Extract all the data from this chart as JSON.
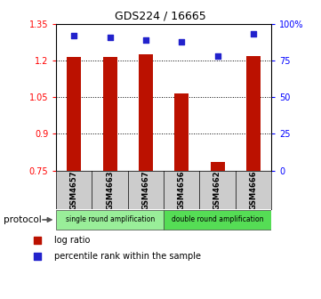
{
  "title": "GDS224 / 16665",
  "samples": [
    "GSM4657",
    "GSM4663",
    "GSM4667",
    "GSM4656",
    "GSM4662",
    "GSM4666"
  ],
  "log_ratio": [
    1.215,
    1.215,
    1.225,
    1.065,
    0.785,
    1.22
  ],
  "percentile_rank": [
    92,
    91,
    89,
    88,
    78,
    93
  ],
  "ylim_left": [
    0.75,
    1.35
  ],
  "ylim_right": [
    0,
    100
  ],
  "yticks_left": [
    0.75,
    0.9,
    1.05,
    1.2,
    1.35
  ],
  "yticks_right": [
    0,
    25,
    50,
    75,
    100
  ],
  "ytick_labels_left": [
    "0.75",
    "0.9",
    "1.05",
    "1.2",
    "1.35"
  ],
  "ytick_labels_right": [
    "0",
    "25",
    "50",
    "75",
    "100%"
  ],
  "groups": [
    {
      "label": "single round amplification",
      "start": 0,
      "end": 3,
      "color": "#99ee99"
    },
    {
      "label": "double round amplification",
      "start": 3,
      "end": 6,
      "color": "#55dd55"
    }
  ],
  "bar_color": "#bb1100",
  "point_color": "#2222cc",
  "bar_width": 0.4,
  "background_color": "#ffffff",
  "sample_box_color": "#cccccc",
  "legend_items": [
    "log ratio",
    "percentile rank within the sample"
  ]
}
